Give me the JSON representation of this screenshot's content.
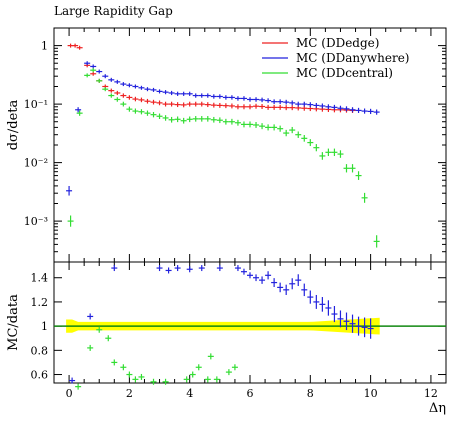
{
  "chart_data": {
    "type": "scatter",
    "title": "Large Rapidity Gap",
    "xlabel": "Δη",
    "ylabel": "dσ/deta",
    "ratio_ylabel": "MC/data",
    "xlim": [
      -0.5,
      12.5
    ],
    "ylim": [
      0.0002,
      2.0
    ],
    "yscale": "log",
    "ratio_ylim": [
      0.53,
      1.53
    ],
    "x_ticks": [
      0,
      2,
      4,
      6,
      8,
      10,
      12
    ],
    "y_ticks": [
      {
        "value": 0.001,
        "label": "10⁻³"
      },
      {
        "value": 0.01,
        "label": "10⁻²"
      },
      {
        "value": 0.1,
        "label": "10⁻¹"
      },
      {
        "value": 1,
        "label": "1"
      }
    ],
    "ratio_ticks": [
      0.6,
      0.8,
      1,
      1.2,
      1.4
    ],
    "legend_placement": "top-right",
    "colors": {
      "edge": "#ee2222",
      "anywhere": "#2222dd",
      "central": "#33dd33",
      "band": "#ffff00",
      "data_line": "#118811"
    },
    "series": [
      {
        "name": "MC (DDedge)",
        "color": "#ee2222",
        "x": [
          0.05,
          0.2,
          0.35,
          0.6,
          0.8,
          1.0,
          1.2,
          1.4,
          1.6,
          1.8,
          2.0,
          2.2,
          2.4,
          2.6,
          2.8,
          3.0,
          3.2,
          3.4,
          3.6,
          3.8,
          4.0,
          4.2,
          4.4,
          4.6,
          4.8,
          5.0,
          5.2,
          5.4,
          5.6,
          5.8,
          6.0,
          6.2,
          6.4,
          6.6,
          6.8,
          7.0,
          7.2,
          7.4,
          7.6,
          7.8,
          8.0,
          8.2,
          8.4,
          8.6,
          8.8,
          9.0,
          9.2,
          9.4
        ],
        "y": [
          1.0,
          1.0,
          0.92,
          0.46,
          0.33,
          0.25,
          0.2,
          0.17,
          0.155,
          0.14,
          0.13,
          0.122,
          0.118,
          0.112,
          0.108,
          0.105,
          0.1,
          0.1,
          0.098,
          0.097,
          0.1,
          0.1,
          0.1,
          0.098,
          0.096,
          0.095,
          0.094,
          0.093,
          0.09,
          0.09,
          0.09,
          0.092,
          0.091,
          0.088,
          0.088,
          0.088,
          0.087,
          0.087,
          0.086,
          0.085,
          0.084,
          0.083,
          0.082,
          0.081,
          0.08,
          0.08,
          0.079,
          0.078
        ],
        "ratio": []
      },
      {
        "name": "MC (DDanywhere)",
        "color": "#2222dd",
        "x": [
          0.0,
          0.3,
          0.6,
          0.8,
          1.0,
          1.2,
          1.4,
          1.6,
          1.8,
          2.0,
          2.2,
          2.4,
          2.6,
          2.8,
          3.0,
          3.2,
          3.4,
          3.6,
          3.8,
          4.0,
          4.2,
          4.4,
          4.6,
          4.8,
          5.0,
          5.2,
          5.4,
          5.6,
          5.8,
          6.0,
          6.2,
          6.4,
          6.6,
          6.8,
          7.0,
          7.2,
          7.4,
          7.6,
          7.8,
          8.0,
          8.2,
          8.4,
          8.6,
          8.8,
          9.0,
          9.2,
          9.4,
          9.6,
          9.8,
          10.0,
          10.2
        ],
        "y": [
          0.0033,
          0.08,
          0.5,
          0.44,
          0.36,
          0.3,
          0.26,
          0.24,
          0.22,
          0.21,
          0.2,
          0.19,
          0.18,
          0.175,
          0.165,
          0.16,
          0.155,
          0.15,
          0.15,
          0.15,
          0.14,
          0.14,
          0.14,
          0.135,
          0.135,
          0.13,
          0.13,
          0.125,
          0.125,
          0.12,
          0.12,
          0.118,
          0.115,
          0.11,
          0.11,
          0.108,
          0.105,
          0.1,
          0.1,
          0.098,
          0.095,
          0.093,
          0.09,
          0.088,
          0.085,
          0.083,
          0.08,
          0.078,
          0.076,
          0.075,
          0.073
        ],
        "ratio_x": [
          0.1,
          0.7,
          1.5,
          3.0,
          3.3,
          3.6,
          4.0,
          4.4,
          5.0,
          5.6,
          5.8,
          6.0,
          6.2,
          6.4,
          6.6,
          6.8,
          7.0,
          7.2,
          7.4,
          7.6,
          7.8,
          8.0,
          8.2,
          8.4,
          8.6,
          8.8,
          9.0,
          9.2,
          9.4,
          9.6,
          9.8,
          10.0
        ],
        "ratio": [
          0.55,
          1.08,
          1.48,
          1.48,
          1.46,
          1.48,
          1.47,
          1.48,
          1.48,
          1.48,
          1.45,
          1.42,
          1.4,
          1.38,
          1.42,
          1.36,
          1.32,
          1.3,
          1.35,
          1.38,
          1.3,
          1.24,
          1.2,
          1.18,
          1.15,
          1.1,
          1.06,
          1.04,
          1.02,
          1.0,
          0.99,
          0.98
        ]
      },
      {
        "name": "MC (DDcentral)",
        "color": "#33dd33",
        "x": [
          0.05,
          0.35,
          0.6,
          0.8,
          1.0,
          1.2,
          1.4,
          1.6,
          1.8,
          2.0,
          2.2,
          2.4,
          2.6,
          2.8,
          3.0,
          3.2,
          3.4,
          3.6,
          3.8,
          4.0,
          4.2,
          4.4,
          4.6,
          4.8,
          5.0,
          5.2,
          5.4,
          5.6,
          5.8,
          6.0,
          6.2,
          6.4,
          6.6,
          6.8,
          7.0,
          7.2,
          7.4,
          7.6,
          7.8,
          8.0,
          8.2,
          8.4,
          8.6,
          8.8,
          9.0,
          9.2,
          9.4,
          9.6,
          9.8,
          10.2
        ],
        "y": [
          0.001,
          0.07,
          0.31,
          0.38,
          0.25,
          0.18,
          0.14,
          0.12,
          0.1,
          0.082,
          0.076,
          0.074,
          0.07,
          0.066,
          0.062,
          0.058,
          0.054,
          0.055,
          0.052,
          0.055,
          0.056,
          0.056,
          0.056,
          0.054,
          0.053,
          0.05,
          0.05,
          0.048,
          0.045,
          0.045,
          0.044,
          0.042,
          0.04,
          0.04,
          0.038,
          0.032,
          0.036,
          0.03,
          0.026,
          0.022,
          0.018,
          0.013,
          0.015,
          0.015,
          0.014,
          0.008,
          0.008,
          0.006,
          0.0025,
          0.00045
        ],
        "ratio_x": [
          0.3,
          0.7,
          1.0,
          1.3,
          1.5,
          1.8,
          2.0,
          2.2,
          2.4,
          2.8,
          3.2,
          3.9,
          4.1,
          4.3,
          4.6,
          4.7,
          4.9,
          5.3,
          5.5
        ],
        "ratio": [
          0.5,
          0.82,
          0.97,
          0.9,
          0.7,
          0.66,
          0.6,
          0.56,
          0.58,
          0.54,
          0.54,
          0.56,
          0.6,
          0.66,
          0.56,
          0.75,
          0.56,
          0.62,
          0.66
        ]
      }
    ]
  }
}
